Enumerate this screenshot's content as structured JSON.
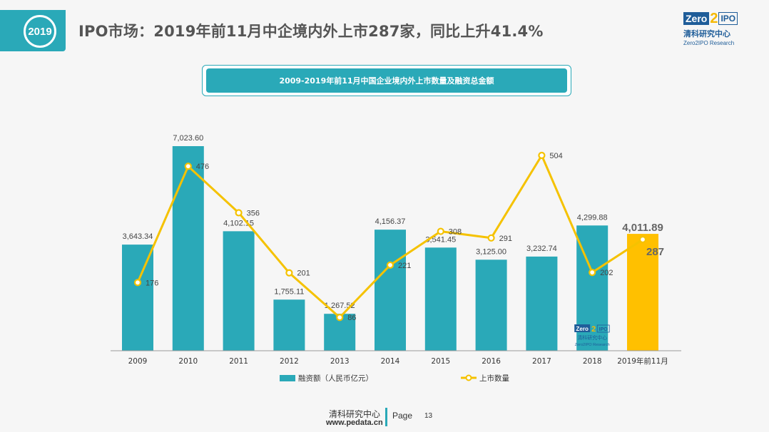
{
  "header": {
    "year_badge": "2019",
    "title": "IPO市场：2019年前11月中企境内外上市287家，同比上升41.4%",
    "logo": {
      "zero": "Zero",
      "two": "2",
      "ipo": "IPO",
      "cn": "清科研究中心",
      "en": "Zero2IPO Research"
    }
  },
  "subtitle": "2009-2019年前11月中国企业境内外上市数量及融资总金额",
  "colors": {
    "teal": "#2aa9b8",
    "gold": "#f5c200",
    "highlight": "#ffc000"
  },
  "chart_data": {
    "type": "bar",
    "categories": [
      "2009",
      "2010",
      "2011",
      "2012",
      "2013",
      "2014",
      "2015",
      "2016",
      "2017",
      "2018",
      "2019年前11月"
    ],
    "series": [
      {
        "name": "融资额（人民币亿元）",
        "type": "bar",
        "axis": "left",
        "values": [
          3643.34,
          7023.6,
          4102.15,
          1755.11,
          1267.52,
          4156.37,
          3541.45,
          3125.0,
          3232.74,
          4299.88,
          4011.89
        ],
        "labels": [
          "3,643.34",
          "7,023.60",
          "4,102.15",
          "1,755.11",
          "1,267.52",
          "4,156.37",
          "3,541.45",
          "3,125.00",
          "3,232.74",
          "4,299.88",
          "4,011.89"
        ]
      },
      {
        "name": "上市数量",
        "type": "line",
        "axis": "right",
        "values": [
          176,
          476,
          356,
          201,
          86,
          221,
          308,
          291,
          504,
          202,
          287
        ],
        "labels": [
          "176",
          "476",
          "356",
          "201",
          "86",
          "221",
          "308",
          "291",
          "504",
          "202",
          "287"
        ]
      }
    ],
    "ylim_left": [
      0,
      7023.6
    ],
    "ylim_right": [
      0,
      504
    ],
    "legend_position": "bottom",
    "watermark": {
      "zero": "Zero",
      "two": "2",
      "ipo": "IPO",
      "cn": "清科研究中心",
      "en": "Zero2IPO Research"
    }
  },
  "footer": {
    "org": "清科研究中心",
    "url": "www.pedata.cn",
    "page_label": "Page",
    "page_number": "13"
  }
}
